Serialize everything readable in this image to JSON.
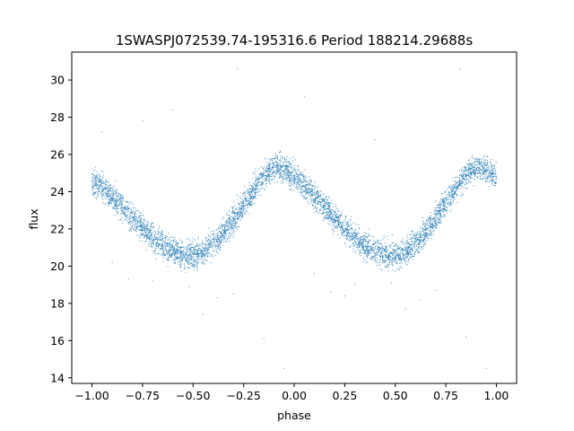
{
  "chart_data": {
    "type": "scatter",
    "title": "1SWASPJ072539.74-195316.6 Period 188214.29688s",
    "xlabel": "phase",
    "ylabel": "flux",
    "xlim": [
      -1.1,
      1.1
    ],
    "ylim": [
      13.7,
      31.5
    ],
    "xticks": [
      -1.0,
      -0.75,
      -0.5,
      -0.25,
      0.0,
      0.25,
      0.5,
      0.75,
      1.0
    ],
    "xtick_labels": [
      "−1.00",
      "−0.75",
      "−0.50",
      "−0.25",
      "0.00",
      "0.25",
      "0.50",
      "0.75",
      "1.00"
    ],
    "yticks": [
      14,
      16,
      18,
      20,
      22,
      24,
      26,
      28,
      30
    ],
    "ytick_labels": [
      "14",
      "16",
      "18",
      "20",
      "22",
      "24",
      "26",
      "28",
      "30"
    ],
    "grid": false,
    "marker_color": "#1f77b4",
    "curve": {
      "x": [
        -1.0,
        -0.9,
        -0.8,
        -0.7,
        -0.6,
        -0.5,
        -0.4,
        -0.3,
        -0.2,
        -0.1,
        0.0,
        0.1,
        0.2,
        0.3,
        0.4,
        0.5,
        0.6,
        0.7,
        0.8,
        0.9,
        1.0
      ],
      "y": [
        24.6,
        23.7,
        22.6,
        21.5,
        20.8,
        20.6,
        21.2,
        22.5,
        24.1,
        25.3,
        24.8,
        23.8,
        22.6,
        21.5,
        20.8,
        20.6,
        21.2,
        22.6,
        24.2,
        25.3,
        24.8
      ]
    },
    "scatter_width": 0.55,
    "n_points": 5200,
    "outliers": {
      "x": [
        -0.28,
        0.82,
        -0.95,
        0.05,
        -0.6,
        0.4,
        -0.15,
        0.85,
        -0.45,
        0.55,
        -0.82,
        0.18,
        -0.05,
        0.95,
        -0.7,
        0.3,
        -0.3,
        0.7,
        -0.52,
        0.48,
        0.62,
        -0.38,
        -0.9,
        0.1,
        0.25,
        -0.75
      ],
      "y": [
        30.6,
        30.6,
        27.2,
        29.1,
        28.4,
        26.8,
        16.1,
        16.2,
        17.4,
        17.7,
        19.3,
        18.6,
        14.5,
        14.5,
        19.2,
        19.0,
        18.5,
        18.7,
        18.9,
        19.1,
        18.2,
        18.3,
        20.2,
        19.6,
        18.4,
        27.8
      ]
    }
  }
}
